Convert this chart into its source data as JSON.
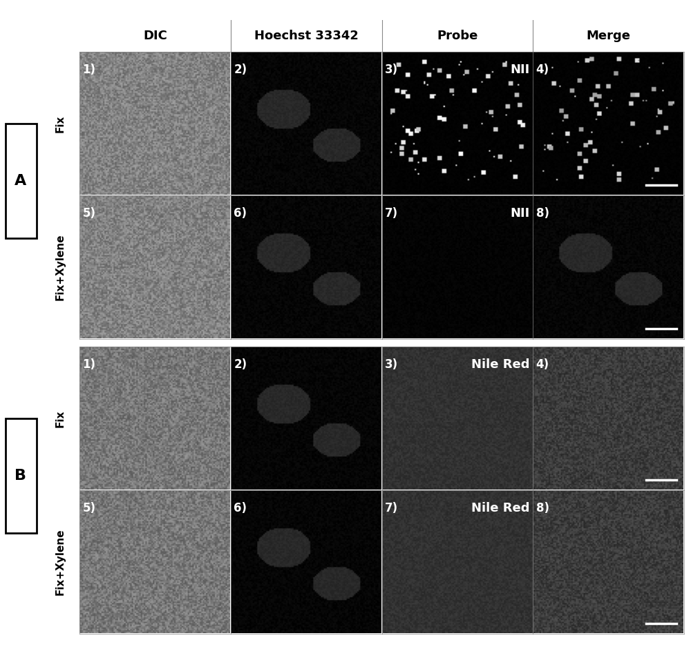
{
  "title_row": [
    "DIC",
    "Hoechst 33342",
    "Probe",
    "Merge"
  ],
  "row_labels_A": [
    "Fix",
    "Fix+Xylene"
  ],
  "row_labels_B": [
    "Fix",
    "Fix+Xylene"
  ],
  "section_labels": [
    "A",
    "B"
  ],
  "probe_labels_A": [
    "NII",
    "NII"
  ],
  "probe_labels_B": [
    "Nile Red",
    "Nile Red"
  ],
  "cell_numbers": [
    [
      "1)",
      "2)",
      "3)",
      "4)"
    ],
    [
      "5)",
      "6)",
      "7)",
      "8)"
    ]
  ],
  "header_bg": "#c8c8c8",
  "row_label_bg": "#b0b0b0",
  "header_text_color": "#000000",
  "title_fontsize": 13,
  "label_fontsize": 11,
  "cell_num_fontsize": 12,
  "probe_label_fontsize": 13,
  "section_label_fontsize": 16,
  "figure_bg": "#ffffff",
  "border_color": "#000000",
  "cell_border": "#888888",
  "scale_bar_color": "#ffffff"
}
